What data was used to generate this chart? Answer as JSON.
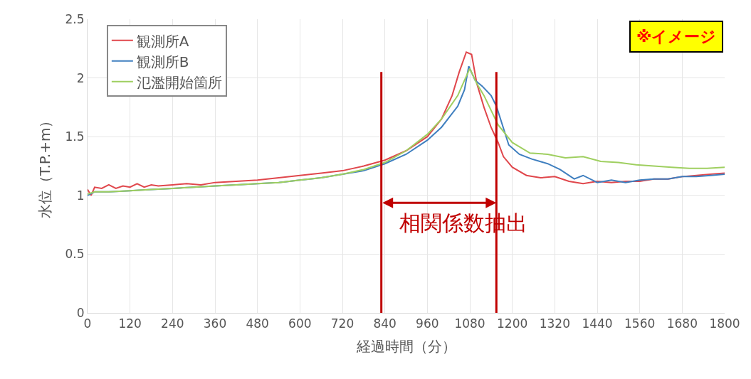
{
  "chart_data": {
    "type": "line",
    "xlabel": "経過時間（分）",
    "ylabel": "水位（T.P.+m）",
    "xlim": [
      0,
      1800
    ],
    "xticks": [
      0,
      120,
      240,
      360,
      480,
      600,
      720,
      840,
      960,
      1080,
      1200,
      1320,
      1440,
      1560,
      1680,
      1800
    ],
    "ylim": [
      0,
      2.5
    ],
    "yticks": [
      0,
      0.5,
      1,
      1.5,
      2,
      2.5
    ],
    "grid": true,
    "legend": "top left",
    "marker": "none",
    "line_style": "solid",
    "series": [
      {
        "name": "観測所A",
        "color": "#e0474c",
        "x": [
          0,
          10,
          20,
          40,
          60,
          80,
          100,
          120,
          140,
          160,
          180,
          200,
          240,
          280,
          320,
          360,
          420,
          480,
          540,
          600,
          660,
          720,
          780,
          840,
          900,
          960,
          1000,
          1030,
          1050,
          1070,
          1085,
          1100,
          1120,
          1140,
          1160,
          1175,
          1200,
          1240,
          1280,
          1320,
          1360,
          1400,
          1440,
          1480,
          1520,
          1560,
          1600,
          1640,
          1680,
          1720,
          1760,
          1800
        ],
        "values": [
          1.05,
          1.0,
          1.07,
          1.06,
          1.09,
          1.06,
          1.08,
          1.07,
          1.1,
          1.07,
          1.09,
          1.08,
          1.09,
          1.1,
          1.09,
          1.11,
          1.12,
          1.13,
          1.15,
          1.17,
          1.19,
          1.21,
          1.25,
          1.3,
          1.38,
          1.5,
          1.65,
          1.85,
          2.05,
          2.22,
          2.2,
          1.95,
          1.75,
          1.58,
          1.45,
          1.33,
          1.24,
          1.17,
          1.15,
          1.16,
          1.12,
          1.1,
          1.12,
          1.11,
          1.12,
          1.12,
          1.14,
          1.14,
          1.16,
          1.17,
          1.18,
          1.19
        ]
      },
      {
        "name": "観測所B",
        "color": "#3f7fbf",
        "x": [
          0,
          20,
          60,
          120,
          180,
          240,
          300,
          360,
          420,
          480,
          540,
          600,
          660,
          720,
          780,
          840,
          900,
          960,
          1000,
          1046,
          1065,
          1077,
          1095,
          1115,
          1140,
          1155,
          1190,
          1220,
          1255,
          1300,
          1335,
          1375,
          1400,
          1440,
          1480,
          1520,
          1560,
          1600,
          1640,
          1680,
          1720,
          1760,
          1800
        ],
        "values": [
          1.0,
          1.03,
          1.03,
          1.04,
          1.05,
          1.06,
          1.07,
          1.08,
          1.09,
          1.1,
          1.11,
          1.13,
          1.15,
          1.18,
          1.21,
          1.27,
          1.35,
          1.47,
          1.58,
          1.76,
          1.9,
          2.1,
          1.98,
          1.93,
          1.85,
          1.76,
          1.43,
          1.35,
          1.31,
          1.27,
          1.22,
          1.14,
          1.17,
          1.11,
          1.13,
          1.11,
          1.13,
          1.14,
          1.14,
          1.16,
          1.16,
          1.17,
          1.18
        ]
      },
      {
        "name": "氾濫開始箇所",
        "color": "#9fcf60",
        "x": [
          0,
          20,
          60,
          120,
          180,
          240,
          300,
          360,
          420,
          480,
          540,
          600,
          660,
          720,
          780,
          840,
          900,
          960,
          1000,
          1046,
          1065,
          1080,
          1100,
          1120,
          1160,
          1200,
          1250,
          1300,
          1350,
          1400,
          1450,
          1500,
          1550,
          1600,
          1650,
          1700,
          1750,
          1800
        ],
        "values": [
          1.01,
          1.03,
          1.03,
          1.04,
          1.05,
          1.06,
          1.07,
          1.08,
          1.09,
          1.1,
          1.11,
          1.13,
          1.15,
          1.18,
          1.22,
          1.28,
          1.38,
          1.52,
          1.65,
          1.85,
          1.98,
          2.08,
          1.95,
          1.85,
          1.6,
          1.45,
          1.36,
          1.35,
          1.32,
          1.33,
          1.29,
          1.28,
          1.26,
          1.25,
          1.24,
          1.23,
          1.23,
          1.24
        ]
      }
    ],
    "ref_lines": [
      {
        "axis": "x",
        "value": 830,
        "color": "#c00000"
      },
      {
        "axis": "x",
        "value": 1155,
        "color": "#c00000"
      }
    ],
    "annotations": [
      "相関係数抽出",
      "※イメージ"
    ]
  }
}
